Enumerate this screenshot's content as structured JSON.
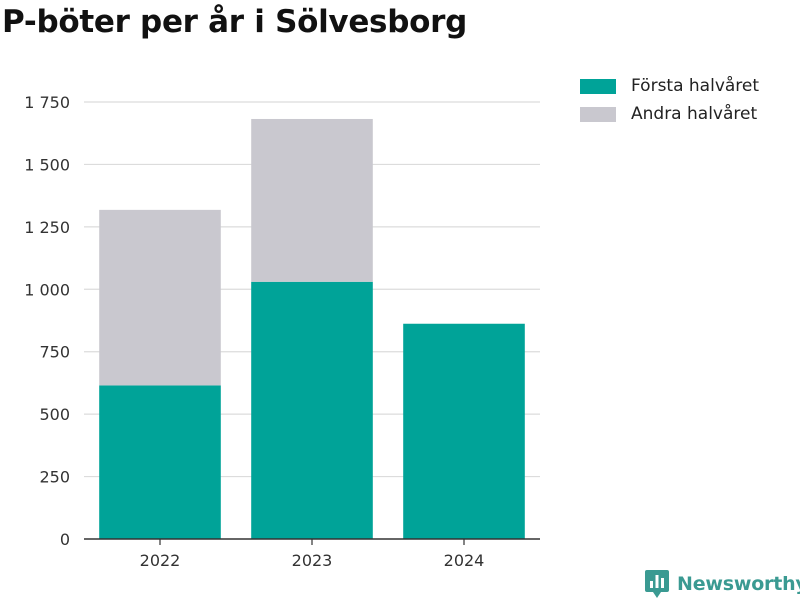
{
  "chart_data": {
    "type": "bar",
    "stacked": true,
    "title": "P-böter per år i Sölvesborg",
    "xlabel": "",
    "ylabel": "",
    "categories": [
      "2022",
      "2023",
      "2024"
    ],
    "series": [
      {
        "name": "Första halvåret",
        "color": "#00a398",
        "values": [
          615,
          1030,
          862
        ]
      },
      {
        "name": "Andra halvåret",
        "color": "#c9c8cf",
        "values": [
          703,
          652,
          0
        ]
      }
    ],
    "ylim": [
      0,
      1750
    ],
    "yticks": [
      {
        "value": 0,
        "label": "0"
      },
      {
        "value": 250,
        "label": "250"
      },
      {
        "value": 500,
        "label": "500"
      },
      {
        "value": 750,
        "label": "750"
      },
      {
        "value": 1000,
        "label": "1 000"
      },
      {
        "value": 1250,
        "label": "1 250"
      },
      {
        "value": 1500,
        "label": "1 500"
      },
      {
        "value": 1750,
        "label": "1 750"
      }
    ],
    "grid": true,
    "legend_position": "top-right"
  },
  "brand": {
    "name": "Newsworthy",
    "icon": "newsworthy-logo-icon",
    "color": "#3a9a92"
  }
}
